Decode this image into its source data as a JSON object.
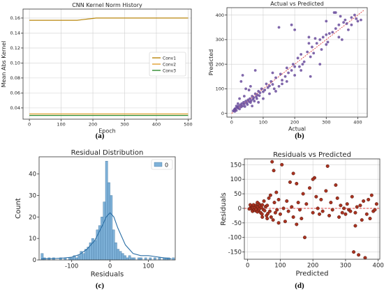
{
  "panels": [
    "(a)",
    "(b)",
    "(c)",
    "(d)"
  ],
  "chart_data": [
    {
      "type": "line",
      "title": "CNN Kernel Norm History",
      "xlabel": "Epoch",
      "ylabel": "Mean Abs Kernel",
      "xlim": [
        -20,
        510
      ],
      "ylim": [
        0.025,
        0.172
      ],
      "xticks": [
        "0",
        "100",
        "200",
        "300",
        "400",
        "500"
      ],
      "yticks": [
        "0.04",
        "0.06",
        "0.08",
        "0.10",
        "0.12",
        "0.14",
        "0.16"
      ],
      "grid": true,
      "legend_position": "center-right",
      "series": [
        {
          "name": "Conv1",
          "color": "#b8860b",
          "x": [
            0,
            50,
            100,
            150,
            170,
            190,
            210,
            250,
            300,
            400,
            500
          ],
          "y": [
            0.157,
            0.157,
            0.157,
            0.157,
            0.158,
            0.159,
            0.16,
            0.16,
            0.16,
            0.16,
            0.16
          ]
        },
        {
          "name": "Conv2",
          "color": "#e0a030",
          "x": [
            0,
            100,
            200,
            300,
            400,
            500
          ],
          "y": [
            0.032,
            0.032,
            0.032,
            0.032,
            0.032,
            0.032
          ]
        },
        {
          "name": "Conv3",
          "color": "#2e8b2e",
          "x": [
            0,
            100,
            200,
            300,
            400,
            500
          ],
          "y": [
            0.03,
            0.03,
            0.03,
            0.03,
            0.03,
            0.03
          ]
        }
      ]
    },
    {
      "type": "scatter",
      "title": "Actual vs Predicted",
      "xlabel": "Actual",
      "ylabel": "Predicted",
      "xlim": [
        -15,
        430
      ],
      "ylim": [
        -15,
        430
      ],
      "xticks": [
        "0",
        "100",
        "200",
        "300",
        "400"
      ],
      "yticks": [
        "0",
        "100",
        "200",
        "300",
        "400"
      ],
      "grid": true,
      "reference_line": {
        "from": [
          0,
          0
        ],
        "to": [
          420,
          420
        ],
        "color": "#e04040"
      },
      "point_color": "#6a4c9c",
      "points": [
        [
          5,
          10
        ],
        [
          8,
          14
        ],
        [
          10,
          18
        ],
        [
          12,
          20
        ],
        [
          15,
          12
        ],
        [
          18,
          25
        ],
        [
          20,
          22
        ],
        [
          22,
          30
        ],
        [
          25,
          18
        ],
        [
          28,
          35
        ],
        [
          30,
          26
        ],
        [
          32,
          40
        ],
        [
          35,
          30
        ],
        [
          38,
          45
        ],
        [
          40,
          38
        ],
        [
          42,
          28
        ],
        [
          45,
          50
        ],
        [
          48,
          42
        ],
        [
          50,
          36
        ],
        [
          52,
          55
        ],
        [
          55,
          48
        ],
        [
          58,
          60
        ],
        [
          60,
          44
        ],
        [
          62,
          52
        ],
        [
          65,
          70
        ],
        [
          68,
          58
        ],
        [
          70,
          64
        ],
        [
          72,
          50
        ],
        [
          75,
          80
        ],
        [
          78,
          68
        ],
        [
          80,
          60
        ],
        [
          82,
          75
        ],
        [
          85,
          90
        ],
        [
          88,
          72
        ],
        [
          90,
          84
        ],
        [
          95,
          100
        ],
        [
          100,
          88
        ],
        [
          105,
          95
        ],
        [
          110,
          120
        ],
        [
          115,
          105
        ],
        [
          120,
          112
        ],
        [
          125,
          130
        ],
        [
          130,
          118
        ],
        [
          135,
          100
        ],
        [
          140,
          145
        ],
        [
          150,
          110
        ],
        [
          155,
          160
        ],
        [
          160,
          135
        ],
        [
          170,
          150
        ],
        [
          175,
          185
        ],
        [
          180,
          165
        ],
        [
          190,
          175
        ],
        [
          195,
          200
        ],
        [
          200,
          155
        ],
        [
          210,
          225
        ],
        [
          215,
          190
        ],
        [
          220,
          240
        ],
        [
          230,
          210
        ],
        [
          240,
          250
        ],
        [
          250,
          230
        ],
        [
          255,
          270
        ],
        [
          260,
          245
        ],
        [
          270,
          285
        ],
        [
          280,
          300
        ],
        [
          285,
          260
        ],
        [
          290,
          310
        ],
        [
          300,
          320
        ],
        [
          305,
          290
        ],
        [
          310,
          325
        ],
        [
          320,
          330
        ],
        [
          330,
          345
        ],
        [
          340,
          360
        ],
        [
          350,
          300
        ],
        [
          355,
          370
        ],
        [
          360,
          380
        ],
        [
          370,
          340
        ],
        [
          380,
          390
        ],
        [
          390,
          400
        ],
        [
          400,
          375
        ],
        [
          410,
          380
        ],
        [
          395,
          385
        ],
        [
          365,
          365
        ],
        [
          325,
          410
        ],
        [
          345,
          395
        ],
        [
          190,
          360
        ],
        [
          200,
          340
        ],
        [
          245,
          310
        ],
        [
          265,
          305
        ],
        [
          245,
          285
        ],
        [
          35,
          155
        ],
        [
          30,
          130
        ],
        [
          45,
          100
        ],
        [
          60,
          110
        ],
        [
          75,
          175
        ],
        [
          150,
          350
        ],
        [
          130,
          165
        ],
        [
          250,
          150
        ],
        [
          220,
          175
        ],
        [
          300,
          280
        ],
        [
          340,
          310
        ],
        [
          20,
          40
        ],
        [
          15,
          30
        ],
        [
          10,
          8
        ],
        [
          25,
          60
        ],
        [
          40,
          70
        ],
        [
          55,
          95
        ],
        [
          65,
          30
        ],
        [
          85,
          45
        ],
        [
          100,
          60
        ],
        [
          120,
          80
        ],
        [
          140,
          90
        ],
        [
          160,
          120
        ],
        [
          175,
          130
        ],
        [
          200,
          190
        ],
        [
          225,
          200
        ],
        [
          330,
          410
        ],
        [
          380,
          360
        ],
        [
          300,
          375
        ],
        [
          280,
          200
        ]
      ]
    },
    {
      "type": "bar",
      "subtype": "histogram_with_kde",
      "title": "Residual Distribution",
      "xlabel": "Residuals",
      "ylabel": "Count",
      "xlim": [
        -185,
        170
      ],
      "ylim": [
        0,
        48
      ],
      "xticks": [
        "-100",
        "0",
        "100"
      ],
      "yticks": [
        "0",
        "10",
        "20",
        "30",
        "40"
      ],
      "grid": false,
      "legend": [
        "0"
      ],
      "legend_position": "top-right",
      "bar_color": "#7fb2d9",
      "kde_color": "#2a6ea5",
      "bins_start": -180,
      "bin_width": 6,
      "values": [
        3,
        1,
        0,
        1,
        0,
        1,
        0,
        0,
        1,
        0,
        1,
        0,
        1,
        1,
        2,
        1,
        2,
        4,
        3,
        5,
        6,
        8,
        10,
        9,
        14,
        16,
        20,
        27,
        46,
        36,
        30,
        14,
        8,
        5,
        4,
        3,
        2,
        1,
        2,
        1,
        1,
        0,
        1,
        1,
        0,
        1,
        0,
        1,
        0,
        1,
        0,
        1,
        0,
        1,
        1,
        1,
        0,
        1
      ],
      "kde": {
        "x": [
          -180,
          -160,
          -140,
          -120,
          -100,
          -80,
          -60,
          -40,
          -20,
          -10,
          0,
          10,
          20,
          40,
          60,
          80,
          100,
          120,
          140,
          160
        ],
        "y": [
          0.5,
          0.6,
          0.7,
          0.9,
          1.3,
          2.5,
          5,
          9,
          16,
          20,
          22,
          20,
          15,
          7,
          3,
          2,
          2,
          1.5,
          1,
          0.5
        ]
      }
    },
    {
      "type": "scatter",
      "title": "Residuals vs Predicted",
      "xlabel": "Predicted",
      "ylabel": "Residuals",
      "xlim": [
        -10,
        405
      ],
      "ylim": [
        -175,
        170
      ],
      "xticks": [
        "0",
        "100",
        "200",
        "300",
        "400"
      ],
      "yticks": [
        "-150",
        "-100",
        "-50",
        "0",
        "50",
        "100",
        "150"
      ],
      "grid": true,
      "reference_line": {
        "y": 0,
        "color": "#e04040",
        "style": "dashed"
      },
      "point_color": "#a83220",
      "points": [
        [
          10,
          5
        ],
        [
          12,
          -2
        ],
        [
          14,
          8
        ],
        [
          15,
          -10
        ],
        [
          16,
          2
        ],
        [
          18,
          12
        ],
        [
          20,
          -5
        ],
        [
          22,
          3
        ],
        [
          24,
          -8
        ],
        [
          25,
          10
        ],
        [
          26,
          -3
        ],
        [
          28,
          6
        ],
        [
          30,
          -12
        ],
        [
          32,
          4
        ],
        [
          34,
          -6
        ],
        [
          35,
          15
        ],
        [
          36,
          -2
        ],
        [
          38,
          8
        ],
        [
          40,
          -15
        ],
        [
          42,
          3
        ],
        [
          44,
          -20
        ],
        [
          45,
          12
        ],
        [
          48,
          -4
        ],
        [
          50,
          25
        ],
        [
          52,
          -8
        ],
        [
          55,
          6
        ],
        [
          58,
          -25
        ],
        [
          60,
          10
        ],
        [
          62,
          -18
        ],
        [
          65,
          35
        ],
        [
          68,
          -10
        ],
        [
          70,
          45
        ],
        [
          72,
          -30
        ],
        [
          75,
          160
        ],
        [
          78,
          -40
        ],
        [
          80,
          130
        ],
        [
          82,
          20
        ],
        [
          85,
          -15
        ],
        [
          88,
          55
        ],
        [
          90,
          -5
        ],
        [
          95,
          30
        ],
        [
          100,
          -20
        ],
        [
          105,
          150
        ],
        [
          110,
          0
        ],
        [
          115,
          -45
        ],
        [
          120,
          25
        ],
        [
          125,
          -10
        ],
        [
          130,
          90
        ],
        [
          135,
          5
        ],
        [
          140,
          -30
        ],
        [
          150,
          85
        ],
        [
          155,
          20
        ],
        [
          160,
          -5
        ],
        [
          165,
          -35
        ],
        [
          170,
          50
        ],
        [
          175,
          -100
        ],
        [
          180,
          15
        ],
        [
          190,
          70
        ],
        [
          200,
          -15
        ],
        [
          205,
          105
        ],
        [
          210,
          40
        ],
        [
          215,
          0
        ],
        [
          220,
          -20
        ],
        [
          225,
          30
        ],
        [
          230,
          -10
        ],
        [
          240,
          60
        ],
        [
          245,
          145
        ],
        [
          250,
          -25
        ],
        [
          255,
          20
        ],
        [
          260,
          -5
        ],
        [
          270,
          80
        ],
        [
          275,
          35
        ],
        [
          280,
          -30
        ],
        [
          285,
          10
        ],
        [
          290,
          -15
        ],
        [
          295,
          0
        ],
        [
          300,
          -20
        ],
        [
          305,
          15
        ],
        [
          310,
          -5
        ],
        [
          315,
          -10
        ],
        [
          320,
          40
        ],
        [
          325,
          -150
        ],
        [
          330,
          -15
        ],
        [
          335,
          5
        ],
        [
          340,
          -160
        ],
        [
          345,
          10
        ],
        [
          350,
          -40
        ],
        [
          355,
          25
        ],
        [
          360,
          -170
        ],
        [
          365,
          -20
        ],
        [
          370,
          30
        ],
        [
          375,
          -35
        ],
        [
          380,
          45
        ],
        [
          385,
          -10
        ],
        [
          390,
          -5
        ],
        [
          395,
          15
        ],
        [
          5,
          -2
        ],
        [
          8,
          12
        ],
        [
          30,
          20
        ],
        [
          45,
          -30
        ],
        [
          60,
          -35
        ],
        [
          95,
          -50
        ],
        [
          150,
          -55
        ],
        [
          200,
          100
        ],
        [
          140,
          120
        ],
        [
          330,
          -60
        ]
      ]
    }
  ]
}
